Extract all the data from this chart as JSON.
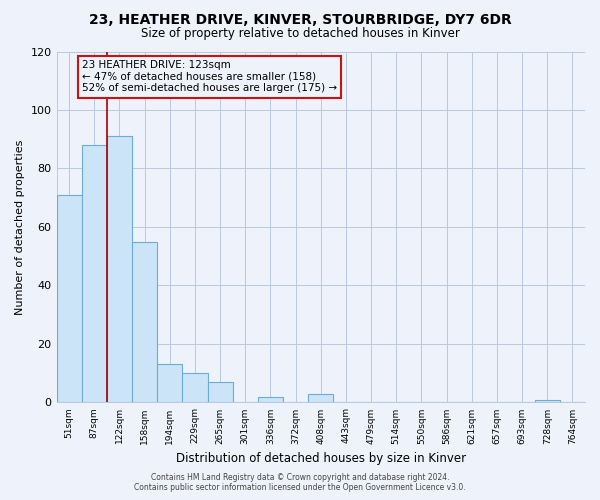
{
  "title": "23, HEATHER DRIVE, KINVER, STOURBRIDGE, DY7 6DR",
  "subtitle": "Size of property relative to detached houses in Kinver",
  "xlabel": "Distribution of detached houses by size in Kinver",
  "ylabel": "Number of detached properties",
  "bin_labels": [
    "51sqm",
    "87sqm",
    "122sqm",
    "158sqm",
    "194sqm",
    "229sqm",
    "265sqm",
    "301sqm",
    "336sqm",
    "372sqm",
    "408sqm",
    "443sqm",
    "479sqm",
    "514sqm",
    "550sqm",
    "586sqm",
    "621sqm",
    "657sqm",
    "693sqm",
    "728sqm",
    "764sqm"
  ],
  "bar_heights": [
    71,
    88,
    91,
    55,
    13,
    10,
    7,
    0,
    2,
    0,
    3,
    0,
    0,
    0,
    0,
    0,
    0,
    0,
    0,
    1,
    0
  ],
  "bar_fill": "#cce4f7",
  "bar_edge": "#6aaed6",
  "vline_index": 2,
  "vline_color": "#aa0000",
  "ylim": [
    0,
    120
  ],
  "yticks": [
    0,
    20,
    40,
    60,
    80,
    100,
    120
  ],
  "annotation_title": "23 HEATHER DRIVE: 123sqm",
  "annotation_line1": "← 47% of detached houses are smaller (158)",
  "annotation_line2": "52% of semi-detached houses are larger (175) →",
  "footer_line1": "Contains HM Land Registry data © Crown copyright and database right 2024.",
  "footer_line2": "Contains public sector information licensed under the Open Government Licence v3.0.",
  "bg_color": "#eef2fb",
  "grid_color": "#b8c8e0",
  "ann_box_color": "#cc1111"
}
